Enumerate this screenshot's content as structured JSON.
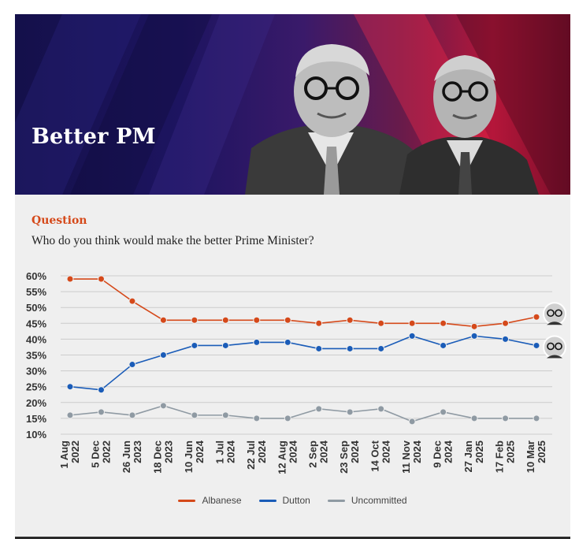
{
  "banner": {
    "title": "Better PM"
  },
  "question": {
    "label": "Question",
    "text": "Who do you think would make the better Prime Minister?"
  },
  "colors": {
    "albanese": "#d5491a",
    "dutton": "#1a5cb8",
    "uncommitted": "#8f9aa3",
    "accent": "#d5491a"
  },
  "chart_data": {
    "type": "line",
    "categories": [
      [
        "1 Aug",
        "2022"
      ],
      [
        "5 Dec",
        "2022"
      ],
      [
        "26 Jun",
        "2023"
      ],
      [
        "18 Dec",
        "2023"
      ],
      [
        "10 Jun",
        "2024"
      ],
      [
        "1 Jul",
        "2024"
      ],
      [
        "22 Jul",
        "2024"
      ],
      [
        "12 Aug",
        "2024"
      ],
      [
        "2 Sep",
        "2024"
      ],
      [
        "23 Sep",
        "2024"
      ],
      [
        "14 Oct",
        "2024"
      ],
      [
        "11 Nov",
        "2024"
      ],
      [
        "9 Dec",
        "2024"
      ],
      [
        "27 Jan",
        "2025"
      ],
      [
        "17 Feb",
        "2025"
      ],
      [
        "10 Mar",
        "2025"
      ]
    ],
    "series": [
      {
        "name": "Albanese",
        "color": "#d5491a",
        "values": [
          59,
          59,
          52,
          46,
          46,
          46,
          46,
          46,
          45,
          46,
          45,
          45,
          45,
          44,
          45,
          47
        ]
      },
      {
        "name": "Dutton",
        "color": "#1a5cb8",
        "values": [
          25,
          24,
          32,
          35,
          38,
          38,
          39,
          39,
          37,
          37,
          37,
          41,
          38,
          41,
          40,
          38
        ]
      },
      {
        "name": "Uncommitted",
        "color": "#8f9aa3",
        "values": [
          16,
          17,
          16,
          19,
          16,
          16,
          15,
          15,
          18,
          17,
          18,
          14,
          17,
          15,
          15,
          15
        ]
      }
    ],
    "yticks": [
      "60%",
      "55%",
      "50%",
      "45%",
      "40%",
      "35%",
      "30%",
      "25%",
      "20%",
      "15%",
      "10%"
    ],
    "ylim": [
      10,
      60
    ],
    "grid": true,
    "legend": "bottom-center"
  },
  "legend": {
    "albanese": "Albanese",
    "dutton": "Dutton",
    "uncommitted": "Uncommitted"
  }
}
